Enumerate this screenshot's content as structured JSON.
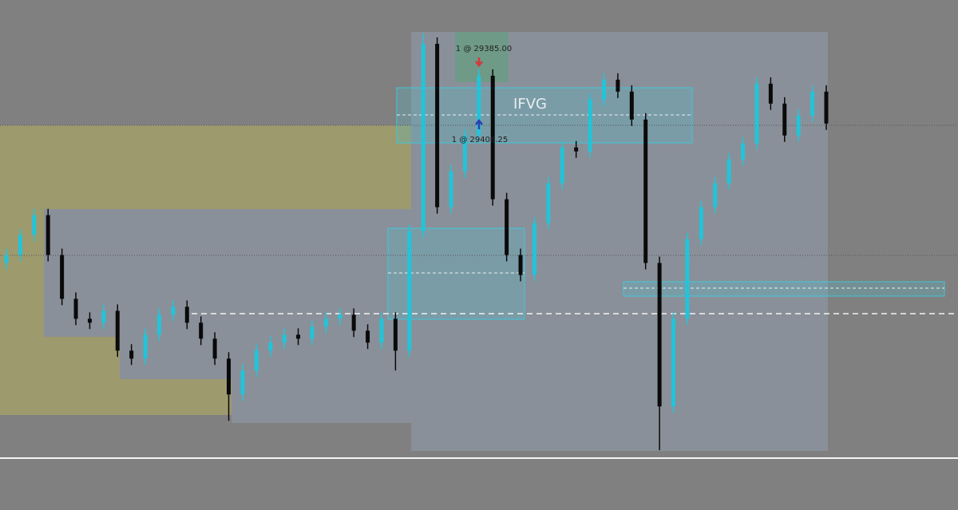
{
  "chart_data": {
    "type": "candlestick",
    "annotations": [
      "1 @ 29385.00",
      "1 @ 29408.25",
      "IFVG"
    ],
    "up_color": "#22c4d9",
    "down_color": "#0a0a0a",
    "ylim": [
      0,
      640
    ],
    "open": [
      310,
      320,
      345,
      370,
      320,
      265,
      240,
      235,
      250,
      200,
      190,
      220,
      245,
      255,
      235,
      215,
      190,
      145,
      175,
      200,
      210,
      220,
      215,
      230,
      240,
      245,
      225,
      210,
      240,
      200,
      350,
      585,
      380,
      425,
      470,
      545,
      390,
      320,
      295,
      360,
      410,
      455,
      450,
      515,
      540,
      525,
      490,
      310,
      130,
      240,
      340,
      380,
      410,
      440,
      460,
      535,
      510,
      470,
      495,
      525
    ],
    "high": [
      328,
      353,
      378,
      378,
      328,
      273,
      248,
      258,
      258,
      208,
      228,
      253,
      263,
      263,
      243,
      223,
      198,
      183,
      208,
      218,
      228,
      228,
      238,
      248,
      253,
      253,
      233,
      248,
      248,
      358,
      598,
      593,
      433,
      478,
      553,
      553,
      398,
      328,
      368,
      418,
      463,
      463,
      523,
      548,
      548,
      533,
      498,
      318,
      248,
      348,
      388,
      418,
      448,
      468,
      543,
      543,
      518,
      503,
      533,
      533
    ],
    "low": [
      302,
      312,
      337,
      312,
      257,
      232,
      227,
      227,
      192,
      182,
      182,
      212,
      237,
      227,
      207,
      182,
      112,
      137,
      167,
      192,
      202,
      207,
      207,
      222,
      232,
      217,
      202,
      202,
      175,
      192,
      342,
      372,
      372,
      417,
      462,
      382,
      312,
      287,
      287,
      352,
      402,
      442,
      442,
      507,
      517,
      482,
      302,
      75,
      122,
      232,
      332,
      372,
      402,
      432,
      452,
      502,
      462,
      462,
      487,
      477
    ],
    "close": [
      320,
      345,
      370,
      320,
      265,
      240,
      235,
      250,
      200,
      190,
      220,
      245,
      255,
      235,
      215,
      190,
      145,
      175,
      200,
      210,
      220,
      215,
      230,
      240,
      245,
      225,
      210,
      240,
      200,
      350,
      585,
      380,
      425,
      470,
      545,
      390,
      320,
      295,
      360,
      410,
      455,
      450,
      515,
      540,
      525,
      490,
      310,
      130,
      240,
      340,
      380,
      410,
      440,
      460,
      535,
      510,
      470,
      495,
      525,
      485
    ]
  }
}
